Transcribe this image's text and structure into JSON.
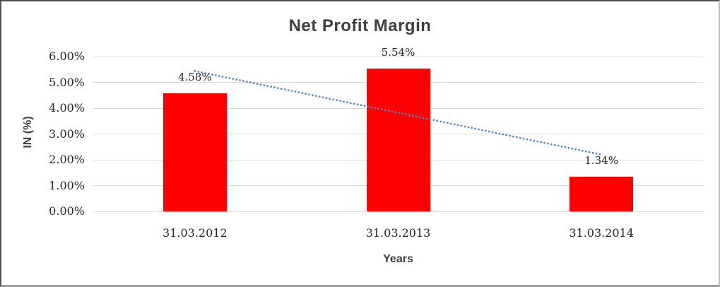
{
  "chart_data": {
    "type": "bar",
    "title": "Net Profit Margin",
    "xlabel": "Years",
    "ylabel": "IN (%)",
    "categories": [
      "31.03.2012",
      "31.03.2013",
      "31.03.2014"
    ],
    "values": [
      4.58,
      5.54,
      1.34
    ],
    "data_labels": [
      "4.58%",
      "5.54%",
      "1.34%"
    ],
    "ylim": [
      0,
      6
    ],
    "ytick_labels": [
      "0.00%",
      "1.00%",
      "2.00%",
      "3.00%",
      "4.00%",
      "5.00%",
      "6.00%"
    ],
    "grid": true,
    "legend": "none",
    "bar_color": "#ff0000",
    "grid_color": "#d9d9d9",
    "title_color": "#3f3f3f",
    "trendline": {
      "type": "linear",
      "style": "dotted",
      "color": "#4f86c6"
    }
  }
}
